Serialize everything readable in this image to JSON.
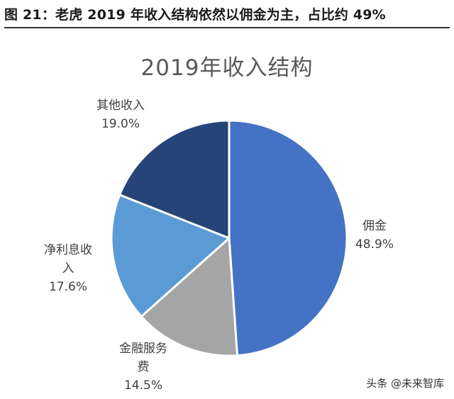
{
  "figure": {
    "caption": "图 21：老虎 2019 年收入结构依然以佣金为主，占比约 49%",
    "watermark": "头条 @未来智库"
  },
  "chart_data": {
    "type": "pie",
    "title": "2019年收入结构",
    "slices": [
      {
        "label": "佣金",
        "label_lines": [
          "佣金"
        ],
        "value": 48.9,
        "value_text": "48.9%",
        "color": "#4472C4"
      },
      {
        "label": "金融服务费",
        "label_lines": [
          "金融服务",
          "费"
        ],
        "value": 14.5,
        "value_text": "14.5%",
        "color": "#A5A5A5"
      },
      {
        "label": "净利息收入",
        "label_lines": [
          "净利息收",
          "入"
        ],
        "value": 17.6,
        "value_text": "17.6%",
        "color": "#5B9BD5"
      },
      {
        "label": "其他收入",
        "label_lines": [
          "其他收入"
        ],
        "value": 19.0,
        "value_text": "19.0%",
        "color": "#264478"
      }
    ],
    "start_angle": "12 o'clock",
    "direction": "clockwise",
    "legend": "none"
  }
}
